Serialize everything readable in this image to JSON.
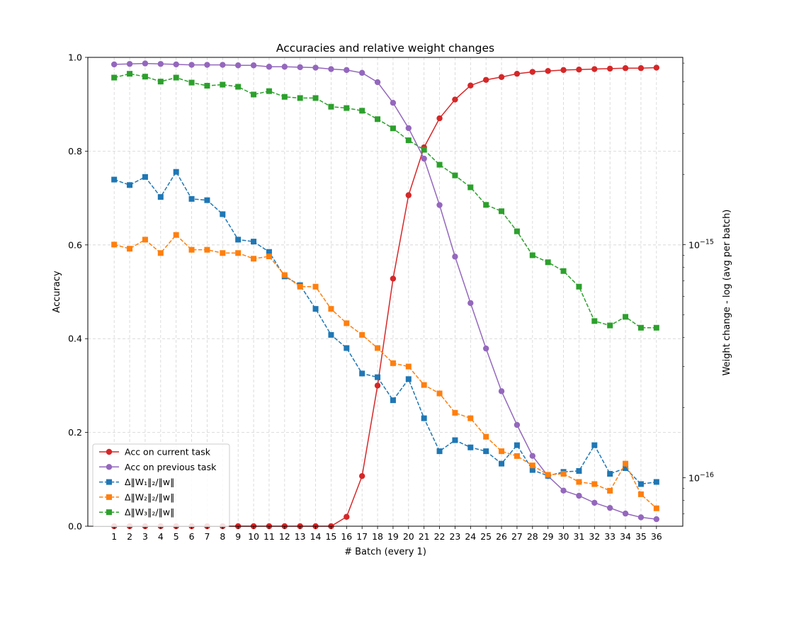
{
  "chart_data": {
    "type": "line",
    "title": "Accuracies and relative weight changes",
    "xlabel": "# Batch (every 1)",
    "ylabel_left": "Accuracy",
    "ylabel_right": "Weight change - log (avg per batch)",
    "x": [
      1,
      2,
      3,
      4,
      5,
      6,
      7,
      8,
      9,
      10,
      11,
      12,
      13,
      14,
      15,
      16,
      17,
      18,
      19,
      20,
      21,
      22,
      23,
      24,
      25,
      26,
      27,
      28,
      29,
      30,
      31,
      32,
      33,
      34,
      35,
      36
    ],
    "ylim_left": [
      0,
      1
    ],
    "yticks_left": [
      "0.0",
      "0.2",
      "0.4",
      "0.6",
      "0.8",
      "1.0"
    ],
    "ylim_right_log": [
      6.2e-17,
      6.35e-15
    ],
    "yticks_right": [
      {
        "label": "10",
        "exp": "−16",
        "value": 1e-16
      },
      {
        "label": "10",
        "exp": "−15",
        "value": 1e-15
      }
    ],
    "grid": true,
    "legend_position": "lower-left",
    "series": [
      {
        "name": "Acc on current task",
        "axis": "left",
        "color": "#d62728",
        "dash": "solid",
        "marker": "circle",
        "values": [
          0,
          0,
          0,
          0,
          0,
          0,
          0,
          0,
          0,
          0,
          0,
          0,
          0,
          0,
          0,
          0.02,
          0.107,
          0.3,
          0.528,
          0.706,
          0.808,
          0.87,
          0.91,
          0.94,
          0.952,
          0.958,
          0.965,
          0.969,
          0.971,
          0.973,
          0.974,
          0.975,
          0.976,
          0.977,
          0.977,
          0.978
        ]
      },
      {
        "name": "Acc on previous task",
        "axis": "left",
        "color": "#9467bd",
        "dash": "solid",
        "marker": "circle",
        "values": [
          0.985,
          0.986,
          0.987,
          0.986,
          0.985,
          0.984,
          0.984,
          0.984,
          0.983,
          0.983,
          0.98,
          0.98,
          0.979,
          0.978,
          0.975,
          0.973,
          0.967,
          0.947,
          0.903,
          0.849,
          0.784,
          0.685,
          0.575,
          0.476,
          0.379,
          0.288,
          0.216,
          0.15,
          0.107,
          0.076,
          0.065,
          0.05,
          0.039,
          0.027,
          0.019,
          0.015
        ]
      },
      {
        "name": "Δ‖W₁‖₂/‖w‖",
        "axis": "right",
        "color": "#1f77b4",
        "dash": "dashed",
        "marker": "square",
        "values": [
          1.9e-15,
          1.8e-15,
          1.95e-15,
          1.6e-15,
          2.05e-15,
          1.57e-15,
          1.55e-15,
          1.35e-15,
          1.05e-15,
          1.03e-15,
          9.3e-16,
          7.3e-16,
          6.7e-16,
          5.3e-16,
          4.1e-16,
          3.6e-16,
          2.8e-16,
          2.7e-16,
          2.15e-16,
          2.65e-16,
          1.8e-16,
          1.3e-16,
          1.45e-16,
          1.35e-16,
          1.3e-16,
          1.15e-16,
          1.38e-16,
          1.08e-16,
          1.02e-16,
          1.06e-16,
          1.07e-16,
          1.38e-16,
          1.04e-16,
          1.1e-16,
          9.4e-17,
          9.6e-17
        ]
      },
      {
        "name": "Δ‖W₂‖₂/‖w‖",
        "axis": "right",
        "color": "#ff7f0e",
        "dash": "dashed",
        "marker": "square",
        "values": [
          1e-15,
          9.6e-16,
          1.05e-15,
          9.2e-16,
          1.1e-15,
          9.5e-16,
          9.5e-16,
          9.2e-16,
          9.2e-16,
          8.7e-16,
          8.9e-16,
          7.4e-16,
          6.6e-16,
          6.6e-16,
          5.3e-16,
          4.6e-16,
          4.1e-16,
          3.6e-16,
          3.1e-16,
          3e-16,
          2.5e-16,
          2.3e-16,
          1.9e-16,
          1.8e-16,
          1.5e-16,
          1.3e-16,
          1.24e-16,
          1.13e-16,
          1.03e-16,
          1.04e-16,
          9.6e-17,
          9.4e-17,
          8.8e-17,
          1.15e-16,
          8.5e-17,
          7.4e-17
        ]
      },
      {
        "name": "Δ‖W₃‖₂/‖w‖",
        "axis": "right",
        "color": "#2ca02c",
        "dash": "dashed",
        "marker": "square",
        "values": [
          5.2e-15,
          5.4e-15,
          5.25e-15,
          5e-15,
          5.2e-15,
          4.95e-15,
          4.8e-15,
          4.85e-15,
          4.75e-15,
          4.4e-15,
          4.55e-15,
          4.3e-15,
          4.25e-15,
          4.25e-15,
          3.9e-15,
          3.85e-15,
          3.75e-15,
          3.45e-15,
          3.15e-15,
          2.8e-15,
          2.55e-15,
          2.2e-15,
          1.98e-15,
          1.76e-15,
          1.48e-15,
          1.39e-15,
          1.14e-15,
          9e-16,
          8.4e-16,
          7.7e-16,
          6.6e-16,
          4.7e-16,
          4.5e-16,
          4.9e-16,
          4.4e-16,
          4.4e-16
        ]
      }
    ]
  }
}
